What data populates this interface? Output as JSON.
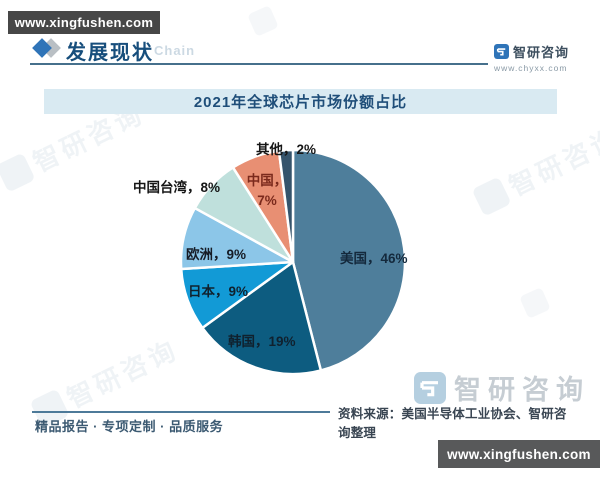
{
  "overlays": {
    "top_url": "www.xingfushen.com",
    "bottom_url": "www.xingfushen.com"
  },
  "header": {
    "section_title": "发展现状",
    "chain_watermark": "Chain",
    "brand": {
      "name": "智研咨询",
      "site": "www.chyxx.com"
    }
  },
  "chart_data": {
    "type": "pie",
    "title": "2021年全球芯片市场份额占比",
    "categories": [
      "美国",
      "韩国",
      "日本",
      "欧洲",
      "中国台湾",
      "中国",
      "其他"
    ],
    "values": [
      46,
      19,
      9,
      9,
      8,
      7,
      2
    ],
    "unit": "%",
    "start_angle": "top",
    "direction": "clockwise",
    "colors": [
      "#4e7e9b",
      "#0d5c80",
      "#129ad6",
      "#8cc6e8",
      "#bfe0dc",
      "#e88f73",
      "#35546c"
    ],
    "labels": [
      {
        "text": "美国，46%",
        "color": "#14293c"
      },
      {
        "text": "韩国，19%",
        "color": "#10212e"
      },
      {
        "text": "日本，9%",
        "color": "#10212e"
      },
      {
        "text": "欧洲，9%",
        "color": "#161c26"
      },
      {
        "text": "中国台湾，8%",
        "color": "#161616"
      },
      {
        "text": "中国，7%",
        "color": "#7b2a1c"
      },
      {
        "text": "其他，2%",
        "color": "#161616"
      }
    ],
    "legend": "none",
    "label_style": "category-and-percent"
  },
  "footer": {
    "tagline": "精品报告 · 专项定制 · 品质服务",
    "source": "资料来源：美国半导体工业协会、智研咨询整理",
    "brand_watermark": "智研咨询"
  }
}
